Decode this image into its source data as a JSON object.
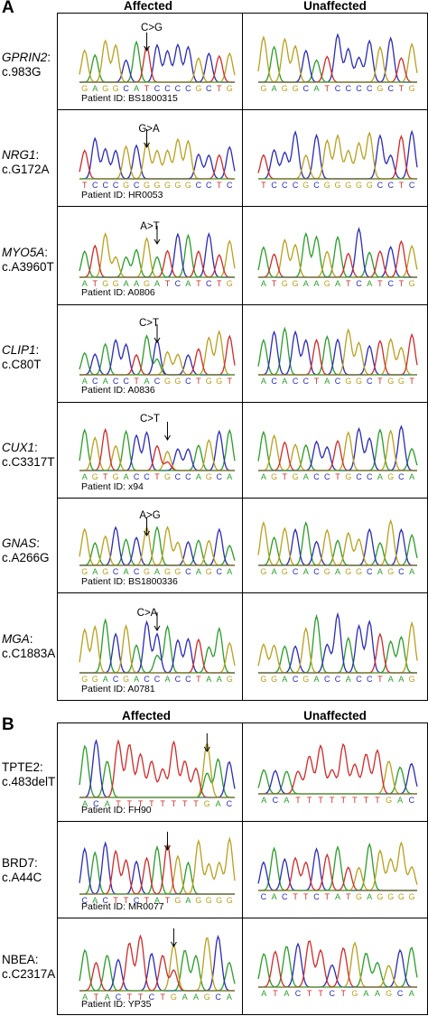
{
  "colors": {
    "A": "#2a9d2a",
    "C": "#2b2bb8",
    "G": "#b8a020",
    "T": "#d02a2a",
    "baseline": "#3aa03a"
  },
  "panel_a": {
    "letter": "A",
    "col_affected": "Affected",
    "col_unaffected": "Unaffected",
    "rows": [
      {
        "gene": "GPRIN2",
        "variant": "c.983G",
        "mutation": "C>G",
        "patient": "Patient ID: BS1800315",
        "affected_seq": "GAGGCATCCCCGCTG",
        "unaffected_seq": "GAGGCATCCCCGCTG",
        "mut_index": 6
      },
      {
        "gene": "NRG1",
        "variant": "c.G172A",
        "mutation": "G>A",
        "patient": "Patient ID: HR0053",
        "affected_seq": "TCCCGCGGGGGCCTC",
        "unaffected_seq": "TCCCGCGGGGGCCTC",
        "mut_index": 6
      },
      {
        "gene": "MYO5A",
        "variant": "c.A3960T",
        "mutation": "A>T",
        "patient": "Patient ID: A0806",
        "affected_seq": "ATGGAAGATCATCTG",
        "unaffected_seq": "ATGGAAGATCATCTG",
        "mut_index": 7
      },
      {
        "gene": "CLIP1",
        "variant": "c.C80T",
        "mutation": "C>T",
        "patient": "Patient ID: A0836",
        "affected_seq": "ACACCTACGGCTGGT",
        "unaffected_seq": "ACACCTACGGCTGGT",
        "mut_index": 7
      },
      {
        "gene": "CUX1",
        "variant": "c.C3317T",
        "mutation": "C>T",
        "patient": "Patient ID: x94",
        "affected_seq": "AGTGACCTGCCAGCA",
        "unaffected_seq": "AGTGACCTGCCAGCA",
        "mut_index": 8
      },
      {
        "gene": "GNAS",
        "variant": "c.A266G",
        "mutation": "A>G",
        "patient": "Patient ID: BS1800336",
        "affected_seq": "GAGCACGAGGCAGCA",
        "unaffected_seq": "GAGCACGAGGCAGCA",
        "mut_index": 6
      },
      {
        "gene": "MGA",
        "variant": "c.C1883A",
        "mutation": "C>A",
        "patient": "Patient ID: A0781",
        "affected_seq": "GGACGACCACCTAAG",
        "unaffected_seq": "GGACGACCACCTAAG",
        "mut_index": 7
      }
    ]
  },
  "panel_b": {
    "letter": "B",
    "col_affected": "Affected",
    "col_unaffected": "Unaffected",
    "rows": [
      {
        "gene": "TPTE2:",
        "variant": "c.483delT",
        "patient": "Patient ID: FH90",
        "affected_seq": "ACATTTTTTTTGAC",
        "unaffected_seq": "ACATTTTTTTTGAC",
        "mut_index": 11
      },
      {
        "gene": "BRD7:",
        "variant": "c.A44C",
        "patient": "Patient ID: MR0077",
        "affected_seq": "CACTTCTATGAGGGG",
        "unaffected_seq": "CACTTCTATGAGGGG",
        "mut_index": 8
      },
      {
        "gene": "NBEA:",
        "variant": "c.C2317A",
        "patient": "Patient ID: YP35",
        "affected_seq": "ATACTTCTGAAGCA",
        "unaffected_seq": "ATACTTCTGAAGCA",
        "mut_index": 8
      }
    ]
  }
}
